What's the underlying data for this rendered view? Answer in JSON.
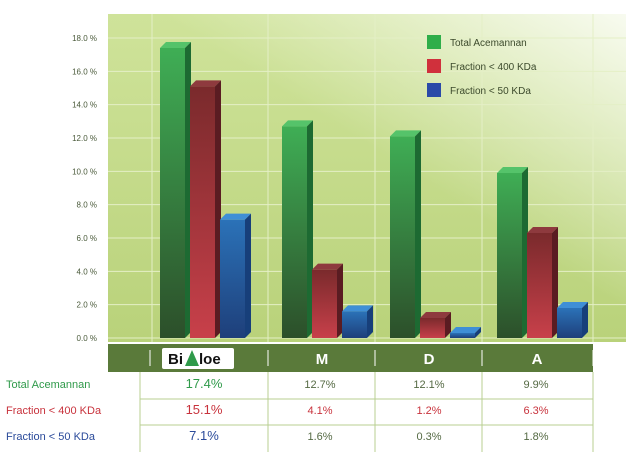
{
  "chart_data": {
    "type": "bar",
    "categories": [
      "BiAloe",
      "M",
      "D",
      "A"
    ],
    "ylim": [
      0,
      18
    ],
    "yticks": [
      "0.0 %",
      "2.0 %",
      "4.0 %",
      "6.0 %",
      "8.0 %",
      "10.0 %",
      "12.0 %",
      "14.0 %",
      "16.0 %",
      "18.0 %"
    ],
    "grid": true,
    "legend_position": "top-right",
    "series": [
      {
        "name": "Total Acemannan",
        "color": "#2f9a4a",
        "values": [
          17.4,
          12.7,
          12.1,
          9.9
        ],
        "labels": [
          "17.4%",
          "12.7%",
          "12.1%",
          "9.9%"
        ]
      },
      {
        "name": "Fraction < 400 KDa",
        "color": "#b8323c",
        "values": [
          15.1,
          4.1,
          1.2,
          6.3
        ],
        "labels": [
          "15.1%",
          "4.1%",
          "1.2%",
          "6.3%"
        ]
      },
      {
        "name": "Fraction < 50 KDa",
        "color": "#2a62a8",
        "values": [
          7.1,
          1.6,
          0.3,
          1.8
        ],
        "labels": [
          "7.1%",
          "1.6%",
          "0.3%",
          "1.8%"
        ]
      }
    ]
  },
  "logo": {
    "name": "BiAloe",
    "text_left": "Bi",
    "text_right": "loe"
  },
  "table": {
    "label_colors": [
      "#2f9a4a",
      "#c8323c",
      "#2a4a9a"
    ]
  }
}
